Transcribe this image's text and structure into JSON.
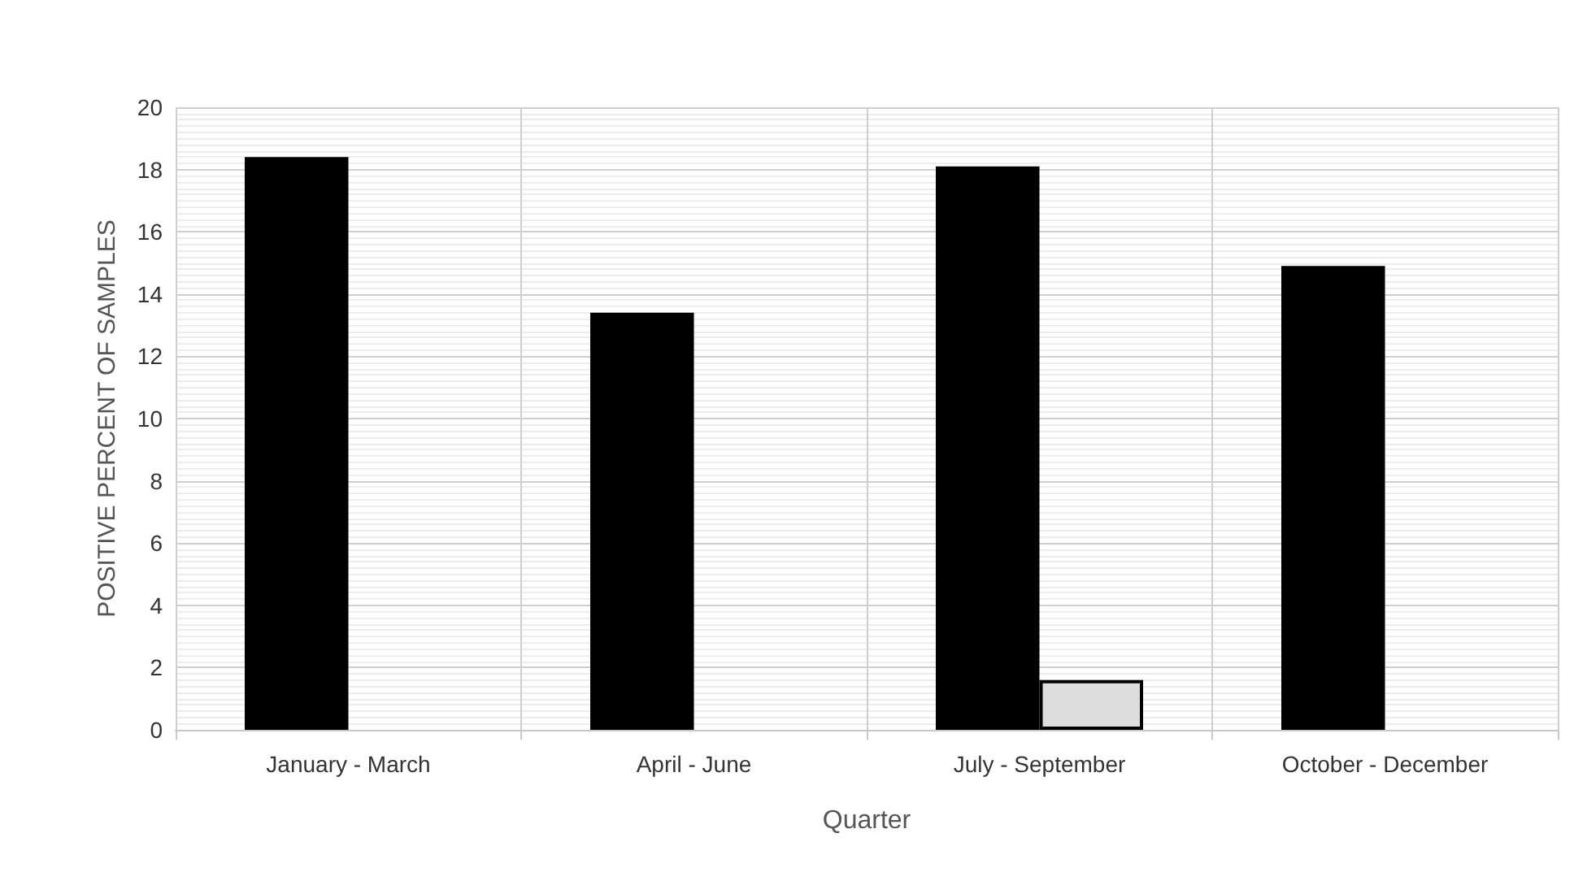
{
  "chart_data": {
    "type": "bar",
    "xlabel": "Quarter",
    "ylabel": "POSITIVE PERCENT OF SAMPLES",
    "categories": [
      "January - March",
      "April - June",
      "July - September",
      "October - December"
    ],
    "series": [
      {
        "color": "#000000",
        "values": [
          18.4,
          13.4,
          18.1,
          14.9
        ]
      },
      {
        "color": "#dddddd",
        "values": [
          null,
          null,
          1.6,
          null
        ]
      }
    ],
    "ylim": [
      0,
      20
    ],
    "yticks": [
      0,
      2,
      4,
      6,
      8,
      10,
      12,
      14,
      16,
      18,
      20
    ],
    "grid": true
  }
}
